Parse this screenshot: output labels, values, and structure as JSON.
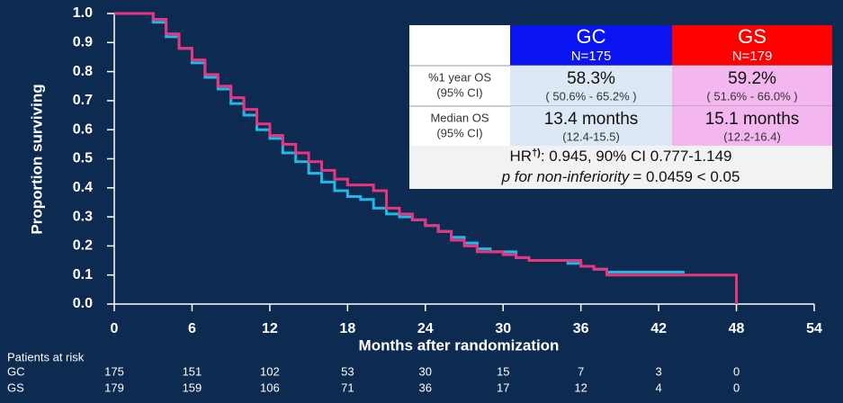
{
  "chart_data": {
    "type": "step",
    "xlabel": "Months after randomization",
    "ylabel": "Proportion surviving",
    "x": [
      0,
      1,
      2,
      3,
      4,
      5,
      6,
      7,
      8,
      9,
      10,
      11,
      12,
      13,
      14,
      15,
      16,
      17,
      18,
      19,
      20,
      21,
      22,
      23,
      24,
      25,
      26,
      27,
      28,
      29,
      30,
      31,
      32,
      33,
      34,
      35,
      36,
      37,
      38,
      39,
      40,
      41,
      42,
      43,
      44,
      45,
      46,
      47,
      48
    ],
    "series": [
      {
        "name": "GC",
        "color": "#22b8e6",
        "values": [
          1,
          1,
          1,
          0.97,
          0.92,
          0.88,
          0.83,
          0.78,
          0.74,
          0.69,
          0.65,
          0.6,
          0.57,
          0.52,
          0.49,
          0.45,
          0.42,
          0.39,
          0.37,
          0.36,
          0.33,
          0.31,
          0.3,
          0.29,
          0.27,
          0.25,
          0.23,
          0.21,
          0.19,
          0.18,
          0.18,
          0.16,
          0.15,
          0.15,
          0.15,
          0.14,
          0.13,
          0.12,
          0.11,
          0.11,
          0.11,
          0.11,
          0.11,
          0.11,
          0.11,
          null,
          null,
          null,
          null
        ]
      },
      {
        "name": "GS",
        "color": "#e8357f",
        "values": [
          1,
          1,
          1,
          0.98,
          0.93,
          0.88,
          0.84,
          0.79,
          0.75,
          0.71,
          0.67,
          0.62,
          0.58,
          0.55,
          0.52,
          0.49,
          0.46,
          0.43,
          0.41,
          0.41,
          0.39,
          0.33,
          0.31,
          0.29,
          0.27,
          0.25,
          0.22,
          0.2,
          0.18,
          0.18,
          0.17,
          0.16,
          0.15,
          0.15,
          0.15,
          0.15,
          0.13,
          0.12,
          0.1,
          0.1,
          0.1,
          0.1,
          0.1,
          0.1,
          0.1,
          0.1,
          0.1,
          0.1,
          0
        ]
      }
    ],
    "xlim": [
      0,
      54
    ],
    "xticks": [
      0,
      6,
      12,
      18,
      24,
      30,
      36,
      42,
      48,
      54
    ],
    "ylim": [
      0,
      1
    ],
    "yticks": [
      {
        "value": 0,
        "label": "0.0"
      },
      0.1,
      0.2,
      0.3,
      0.4,
      0.5,
      0.6,
      0.7,
      0.8,
      0.9,
      {
        "value": 1,
        "label": "1.0"
      }
    ],
    "summary_table": {
      "columns": [
        {
          "name": "GC",
          "n": "N=175"
        },
        {
          "name": "GS",
          "n": "N=179"
        }
      ],
      "rows": [
        {
          "label": [
            "%1 year OS",
            "(95% CI)"
          ],
          "cells": [
            [
              "58.3%",
              "( 50.6% - 65.2% )"
            ],
            [
              "59.2%",
              "( 51.6% - 66.0% )"
            ]
          ]
        },
        {
          "label": [
            "Median OS",
            "(95% CI)"
          ],
          "cells": [
            [
              "13.4 months",
              "(12.4-15.5)"
            ],
            [
              "15.1 months",
              "(12.2-16.4)"
            ]
          ]
        }
      ],
      "hr": [
        "HR",
        "†)",
        ": 0.945, 90% CI 0.777-1.149"
      ],
      "p": [
        "p for non-inferiority",
        "= 0.0459 < 0.05"
      ]
    },
    "risk_table": {
      "title": "Patients at risk",
      "rows": [
        {
          "name": "GC",
          "values": [
            175,
            151,
            102,
            53,
            30,
            15,
            7,
            3,
            0
          ]
        },
        {
          "name": "GS",
          "values": [
            179,
            159,
            106,
            71,
            36,
            17,
            12,
            4,
            0
          ]
        }
      ]
    }
  }
}
